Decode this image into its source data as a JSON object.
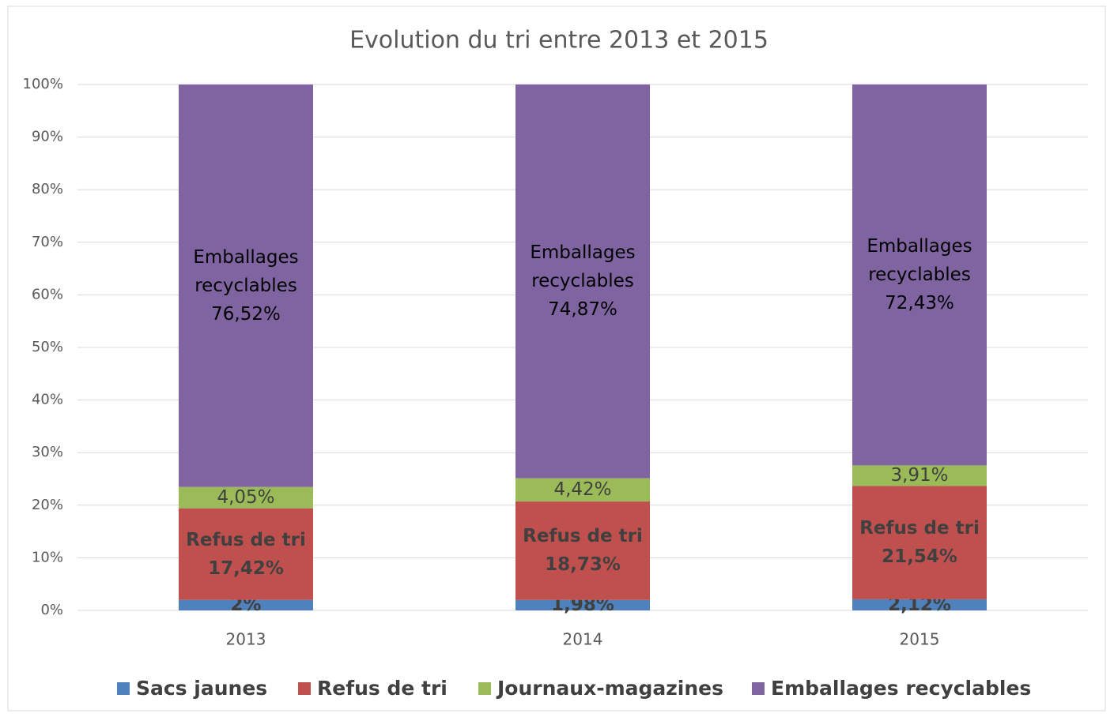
{
  "chart_data": {
    "type": "stacked_bar",
    "title": "Evolution du tri entre 2013 et 2015",
    "categories": [
      "2013",
      "2014",
      "2015"
    ],
    "series": [
      {
        "name": "Sacs jaunes",
        "color": "#4f81bd",
        "values": [
          2,
          1.98,
          2.12
        ],
        "value_labels": [
          "2%",
          "1,98%",
          "2,12%"
        ]
      },
      {
        "name": "Refus de tri",
        "color": "#c0504d",
        "values": [
          17.42,
          18.73,
          21.54
        ],
        "value_labels": [
          "17,42%",
          "18,73%",
          "21,54%"
        ]
      },
      {
        "name": "Journaux-magazines",
        "color": "#9bbb59",
        "values": [
          4.05,
          4.42,
          3.91
        ],
        "value_labels": [
          "4,05%",
          "4,42%",
          "3,91%"
        ]
      },
      {
        "name": "Emballages recyclables",
        "color": "#8064a2",
        "values": [
          76.52,
          74.87,
          72.43
        ],
        "value_labels": [
          "76,52%",
          "74,87%",
          "72,43%"
        ]
      }
    ],
    "ylim": [
      0,
      100
    ],
    "yticks": [
      {
        "value": 0,
        "label": "0%"
      },
      {
        "value": 10,
        "label": "10%"
      },
      {
        "value": 20,
        "label": "20%"
      },
      {
        "value": 30,
        "label": "30%"
      },
      {
        "value": 40,
        "label": "40%"
      },
      {
        "value": 50,
        "label": "50%"
      },
      {
        "value": 60,
        "label": "60%"
      },
      {
        "value": 70,
        "label": "70%"
      },
      {
        "value": 80,
        "label": "80%"
      },
      {
        "value": 90,
        "label": "90%"
      },
      {
        "value": 100,
        "label": "100%"
      }
    ],
    "grid": true,
    "legend": "bottom"
  }
}
